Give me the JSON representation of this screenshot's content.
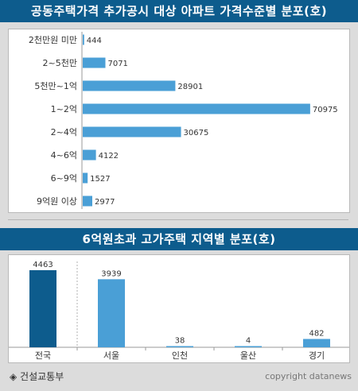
{
  "chart_data": [
    {
      "type": "bar",
      "orientation": "horizontal",
      "title": "공동주택가격 추가공시 대상 아파트 가격수준별 분포(호)",
      "categories": [
        "2천만원 미만",
        "2~5천만",
        "5천만~1억",
        "1~2억",
        "2~4억",
        "4~6억",
        "6~9억",
        "9억원 이상"
      ],
      "values": [
        444,
        7071,
        28901,
        70975,
        30675,
        4122,
        1527,
        2977
      ],
      "xlim": [
        0,
        72000
      ],
      "grid": false,
      "colors": {
        "bar": "#4a9fd6"
      }
    },
    {
      "type": "bar",
      "orientation": "vertical",
      "title": "6억원초과 고가주택 지역별 분포(호)",
      "categories": [
        "전국",
        "서울",
        "인천",
        "울산",
        "경기"
      ],
      "values": [
        4463,
        3939,
        38,
        4,
        482
      ],
      "ylim": [
        0,
        4600
      ],
      "grid": false,
      "colors": {
        "highlight": "#0d5c8d",
        "bar": "#4a9fd6"
      }
    }
  ],
  "footer": {
    "source": "◈ 건설교통부",
    "copyright": "copyright datanews"
  }
}
